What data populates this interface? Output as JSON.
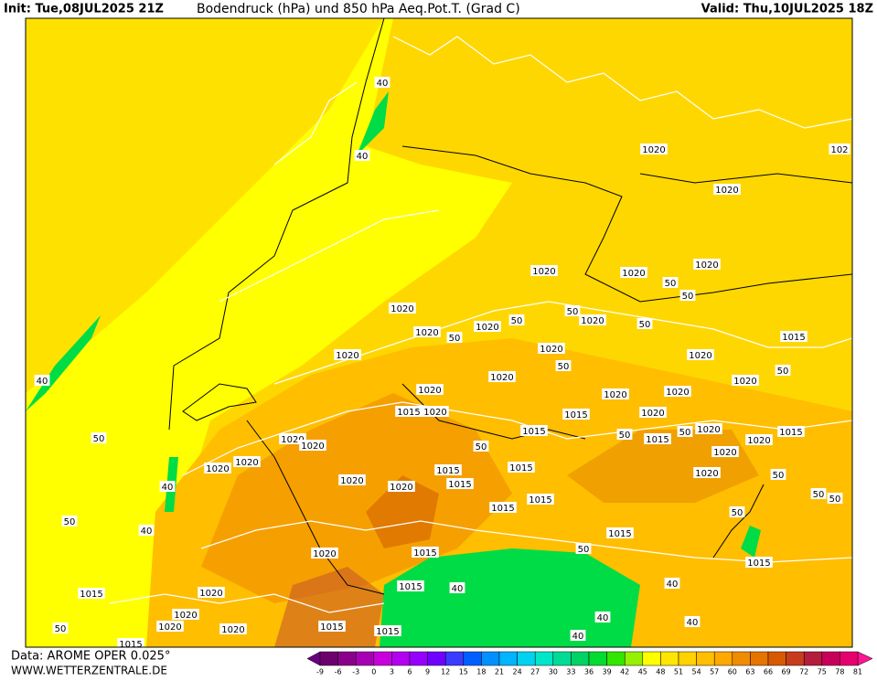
{
  "header": {
    "init": "Init: Tue,08JUL2025 21Z",
    "title": "Bodendruck (hPa) und 850 hPa Aeq.Pot.T. (Grad C)",
    "valid": "Valid: Thu,10JUL2025 18Z"
  },
  "footer": {
    "data": "Data: AROME OPER 0.025°",
    "site": "WWW.WETTERZENTRALE.DE"
  },
  "colorbar": {
    "ticks": [
      -9,
      -6,
      -3,
      0,
      3,
      6,
      9,
      12,
      15,
      18,
      21,
      24,
      27,
      30,
      33,
      36,
      39,
      42,
      45,
      48,
      51,
      54,
      57,
      60,
      63,
      66,
      69,
      72,
      75,
      78,
      81
    ],
    "colors": [
      "#6c006c",
      "#8a008a",
      "#a800b4",
      "#c800dc",
      "#b400f0",
      "#9600ff",
      "#7000ff",
      "#3c3cff",
      "#0060ff",
      "#0090ff",
      "#00b4ff",
      "#00d2f0",
      "#00e6c8",
      "#00dc96",
      "#00d264",
      "#00dc32",
      "#32e600",
      "#96f000",
      "#ffff00",
      "#ffe600",
      "#ffd200",
      "#ffbe00",
      "#ffa800",
      "#f08c00",
      "#e67400",
      "#d85a00",
      "#c83c1e",
      "#b41e3c",
      "#c8005a",
      "#e6006e"
    ],
    "under_color": "#6a0080",
    "over_color": "#ff1493"
  },
  "contour_labels": [
    "1020",
    "102",
    "1020",
    "1020",
    "1020",
    "1020",
    "1020",
    "1020",
    "1020",
    "1020",
    "1020",
    "1020",
    "1020",
    "1015",
    "1020",
    "1020",
    "1020",
    "1020",
    "1020",
    "1015",
    "1020",
    "1015",
    "1020",
    "1020",
    "1015",
    "1020",
    "1015",
    "1015",
    "1020",
    "1020",
    "1020",
    "1020",
    "1020",
    "1020",
    "1015",
    "1015",
    "1015",
    "1020",
    "1020",
    "1015",
    "1015",
    "1015",
    "1015",
    "1020",
    "1015",
    "1015",
    "1015",
    "1020",
    "1020",
    "1020",
    "1015",
    "1015",
    "1020",
    "1015",
    "50",
    "50",
    "50",
    "50",
    "50",
    "50",
    "50",
    "50",
    "50",
    "50",
    "50",
    "50",
    "50",
    "50",
    "50",
    "50",
    "50",
    "50",
    "50",
    "40",
    "40",
    "40",
    "40",
    "40",
    "40",
    "40",
    "40",
    "40",
    "40"
  ]
}
